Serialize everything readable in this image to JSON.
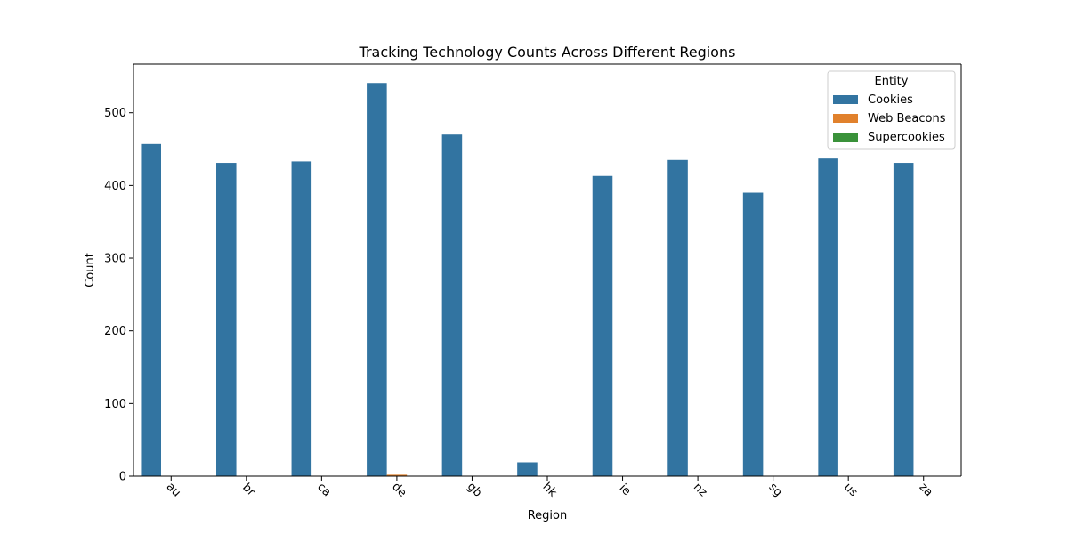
{
  "chart_data": {
    "type": "bar",
    "title": "Tracking Technology Counts Across Different Regions",
    "xlabel": "Region",
    "ylabel": "Count",
    "categories": [
      "au",
      "br",
      "ca",
      "de",
      "gb",
      "hk",
      "ie",
      "nz",
      "sg",
      "us",
      "za"
    ],
    "series": [
      {
        "name": "Cookies",
        "color": "#3274a1",
        "values": [
          457,
          431,
          433,
          541,
          470,
          19,
          413,
          435,
          390,
          437,
          431
        ]
      },
      {
        "name": "Web Beacons",
        "color": "#e1812c",
        "values": [
          0,
          0,
          0,
          2,
          0,
          0,
          0,
          0,
          0,
          0,
          0
        ]
      },
      {
        "name": "Supercookies",
        "color": "#3a923a",
        "values": [
          0,
          0,
          0,
          0,
          0,
          0,
          0,
          0,
          0,
          0,
          0
        ]
      }
    ],
    "ylim": [
      0,
      567
    ],
    "yticks": [
      0,
      100,
      200,
      300,
      400,
      500
    ],
    "grid": false,
    "legend": {
      "title": "Entity",
      "placement": "top-right"
    }
  }
}
